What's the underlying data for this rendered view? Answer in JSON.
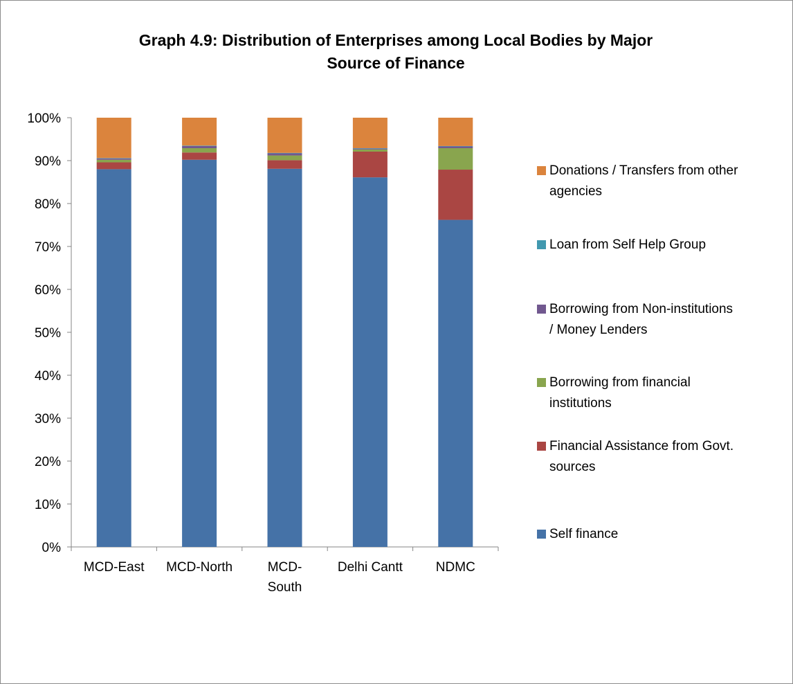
{
  "chart_data": {
    "type": "bar",
    "stacked": true,
    "percent": true,
    "title": "Graph 4.9:   Distribution of Enterprises among Local Bodies by Major Source of Finance",
    "title_line1": "Graph 4.9:   Distribution of Enterprises among Local Bodies by Major",
    "title_line2": "Source of Finance",
    "categories": [
      "MCD-East",
      "MCD-North",
      "MCD-South",
      "Delhi Cantt",
      "NDMC"
    ],
    "category_lines": [
      [
        "MCD-East"
      ],
      [
        "MCD-North"
      ],
      [
        "MCD-",
        "South"
      ],
      [
        "Delhi Cantt"
      ],
      [
        "NDMC"
      ]
    ],
    "ylim": [
      0,
      100
    ],
    "y_ticks": [
      "0%",
      "10%",
      "20%",
      "30%",
      "40%",
      "50%",
      "60%",
      "70%",
      "80%",
      "90%",
      "100%"
    ],
    "grid": false,
    "legend_position": "right",
    "series": [
      {
        "name": "Self finance",
        "color": "#4572A7",
        "values": [
          88.0,
          90.2,
          88.1,
          86.1,
          76.2
        ]
      },
      {
        "name": "Financial Assistance from Govt. sources",
        "color": "#AA4643",
        "values": [
          1.6,
          1.7,
          2.0,
          6.0,
          11.7
        ]
      },
      {
        "name": "Borrowing from financial institutions",
        "color": "#89A54E",
        "values": [
          0.6,
          1.0,
          1.1,
          0.5,
          5.0
        ]
      },
      {
        "name": "Borrowing from Non-institutions / Money Lenders",
        "color": "#71588F",
        "values": [
          0.3,
          0.5,
          0.5,
          0.2,
          0.4
        ]
      },
      {
        "name": "Loan from Self Help Group",
        "color": "#4198AF",
        "values": [
          0.1,
          0.1,
          0.1,
          0.1,
          0.1
        ]
      },
      {
        "name": "Donations / Transfers from other agencies",
        "color": "#DB843D",
        "values": [
          9.4,
          6.5,
          8.2,
          7.1,
          6.6
        ]
      }
    ],
    "legend": [
      {
        "lines": [
          "Donations / Transfers from other",
          "agencies"
        ],
        "color": "#DB843D"
      },
      {
        "lines": [
          "Loan from Self Help Group"
        ],
        "color": "#4198AF"
      },
      {
        "lines": [
          "Borrowing from Non-institutions",
          "/ Money Lenders"
        ],
        "color": "#71588F"
      },
      {
        "lines": [
          "Borrowing from financial",
          "institutions"
        ],
        "color": "#89A54E"
      },
      {
        "lines": [
          "Financial Assistance from Govt.",
          "sources"
        ],
        "color": "#AA4643"
      },
      {
        "lines": [
          "Self finance"
        ],
        "color": "#4572A7"
      }
    ]
  }
}
